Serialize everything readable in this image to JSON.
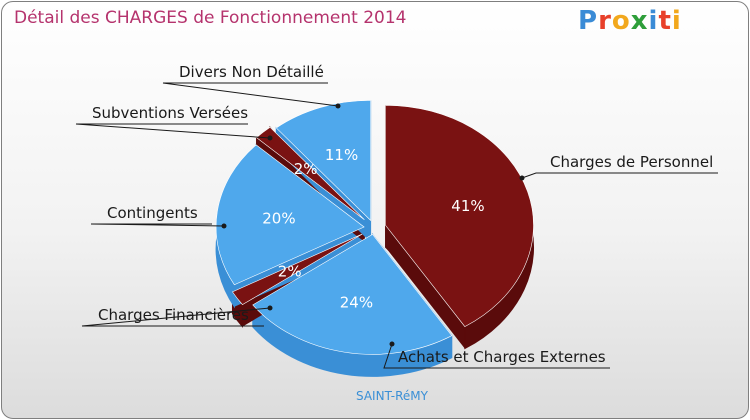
{
  "brand": {
    "letters": [
      "P",
      "r",
      "o",
      "x",
      "i",
      "t",
      "i"
    ],
    "colors": [
      "#3a8bd6",
      "#e8402a",
      "#f2a81d",
      "#2e9e3a",
      "#3a8bd6",
      "#e8402a",
      "#f2a81d"
    ]
  },
  "colors": {
    "title": "#b5336d",
    "blue": "#4fa8ec",
    "blue_side": "#3a8fd6",
    "red": "#7a1212",
    "red_side": "#5a0b0b",
    "subtitle": "#3a8fd6"
  },
  "chart_data": {
    "type": "pie",
    "title": "Détail des CHARGES de Fonctionnement 2014",
    "subtitle": "SAINT-RéMY",
    "slices": [
      {
        "label": "Charges de Personnel",
        "value": 41,
        "text": "41%",
        "color": "red"
      },
      {
        "label": "Achats et Charges Externes",
        "value": 24,
        "text": "24%",
        "color": "blue"
      },
      {
        "label": "Charges Financières",
        "value": 2,
        "text": "2%",
        "color": "red"
      },
      {
        "label": "Contingents",
        "value": 20,
        "text": "20%",
        "color": "blue"
      },
      {
        "label": "Subventions Versées",
        "value": 2,
        "text": "2%",
        "color": "red"
      },
      {
        "label": "Divers Non Détaillé",
        "value": 11,
        "text": "11%",
        "color": "blue"
      }
    ]
  }
}
